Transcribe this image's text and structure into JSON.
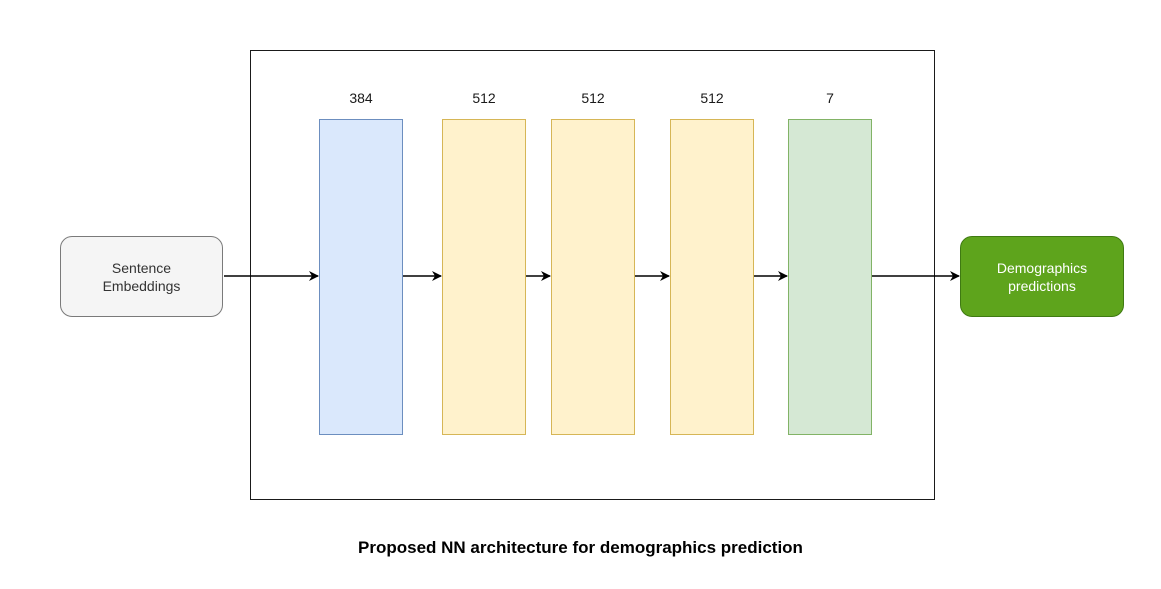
{
  "input": {
    "line1": "Sentence",
    "line2": "Embeddings"
  },
  "output": {
    "line1": "Demographics",
    "line2": "predictions"
  },
  "layers": [
    {
      "size": "384",
      "color": "#dae8fc",
      "border": "#6c8ebf"
    },
    {
      "size": "512",
      "color": "#fff2cc",
      "border": "#d6b656"
    },
    {
      "size": "512",
      "color": "#fff2cc",
      "border": "#d6b656"
    },
    {
      "size": "512",
      "color": "#fff2cc",
      "border": "#d6b656"
    },
    {
      "size": "7",
      "color": "#d5e8d4",
      "border": "#82b366"
    }
  ],
  "caption": "Proposed NN architecture for demographics prediction"
}
